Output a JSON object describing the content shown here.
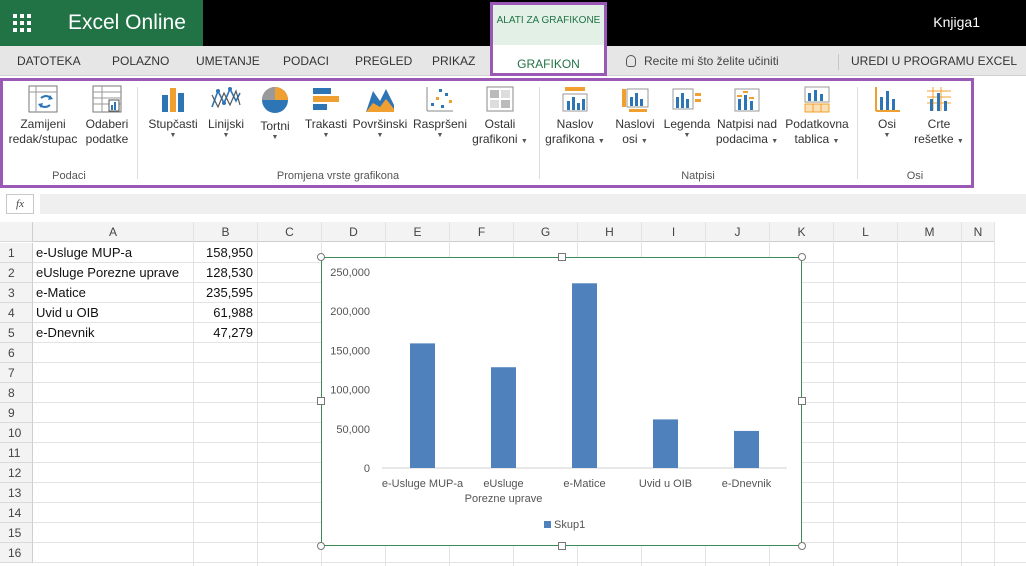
{
  "app": {
    "name": "Excel Online",
    "document": "Knjiga1"
  },
  "tabs": [
    "DATOTEKA",
    "POLAZNO",
    "UMETANJE",
    "PODACI",
    "PREGLED",
    "PRIKAZ"
  ],
  "contextual": {
    "group": "ALATI ZA GRAFIKONE",
    "tab": "GRAFIKON"
  },
  "tell_me": "Recite mi što želite učiniti",
  "edit_in_excel": "UREDI U PROGRAMU EXCEL",
  "ribbon": {
    "groups": [
      {
        "label": "Podaci",
        "buttons": [
          {
            "line1": "Zamijeni",
            "line2": "redak/stupac",
            "icon": "switch-row-column-icon"
          },
          {
            "line1": "Odaberi",
            "line2": "podatke",
            "icon": "select-data-icon"
          }
        ]
      },
      {
        "label": "Promjena vrste grafikona",
        "buttons": [
          {
            "line1": "Stupčasti",
            "line2": "",
            "icon": "column-chart-icon"
          },
          {
            "line1": "Linijski",
            "line2": "",
            "icon": "line-chart-icon"
          },
          {
            "line1": "Tortni",
            "line2": "",
            "icon": "pie-chart-icon"
          },
          {
            "line1": "Trakasti",
            "line2": "",
            "icon": "bar-chart-icon"
          },
          {
            "line1": "Površinski",
            "line2": "",
            "icon": "area-chart-icon"
          },
          {
            "line1": "Raspršeni",
            "line2": "",
            "icon": "scatter-chart-icon"
          },
          {
            "line1": "Ostali",
            "line2": "grafikoni",
            "icon": "other-charts-icon"
          }
        ]
      },
      {
        "label": "Natpisi",
        "buttons": [
          {
            "line1": "Naslov",
            "line2": "grafikona",
            "icon": "chart-title-icon"
          },
          {
            "line1": "Naslovi",
            "line2": "osi",
            "icon": "axis-titles-icon"
          },
          {
            "line1": "Legenda",
            "line2": "",
            "icon": "legend-icon"
          },
          {
            "line1": "Natpisi nad",
            "line2": "podacima",
            "icon": "data-labels-icon"
          },
          {
            "line1": "Podatkovna",
            "line2": "tablica",
            "icon": "data-table-icon"
          }
        ]
      },
      {
        "label": "Osi",
        "buttons": [
          {
            "line1": "Osi",
            "line2": "",
            "icon": "axes-icon"
          },
          {
            "line1": "Crte",
            "line2": "rešetke",
            "icon": "gridlines-icon"
          }
        ]
      }
    ]
  },
  "formula_bar": {
    "fx": "fx"
  },
  "columns": [
    "A",
    "B",
    "C",
    "D",
    "E",
    "F",
    "G",
    "H",
    "I",
    "J",
    "K",
    "L",
    "M",
    "N"
  ],
  "rows": [
    "1",
    "2",
    "3",
    "4",
    "5",
    "6",
    "7",
    "8",
    "9",
    "10",
    "11",
    "12",
    "13",
    "14",
    "15",
    "16"
  ],
  "cells": [
    {
      "label": "e-Usluge MUP-a",
      "value": "158,950"
    },
    {
      "label": "eUsluge Porezne uprave",
      "value": "128,530"
    },
    {
      "label": "e-Matice",
      "value": "235,595"
    },
    {
      "label": "Uvid u OIB",
      "value": "61,988"
    },
    {
      "label": "e-Dnevnik",
      "value": "47,279"
    }
  ],
  "colors": {
    "excel_green": "#217346",
    "highlight": "#9b59b6",
    "bar": "#4f81bd"
  },
  "chart_data": {
    "type": "bar",
    "categories": [
      "e-Usluge MUP-a",
      "eUsluge Porezne uprave",
      "e-Matice",
      "Uvid u OIB",
      "e-Dnevnik"
    ],
    "series": [
      {
        "name": "Skup1",
        "values": [
          158950,
          128530,
          235595,
          61988,
          47279
        ]
      }
    ],
    "ylim": [
      0,
      250000
    ],
    "yticks": [
      "0",
      "50,000",
      "100,000",
      "150,000",
      "200,000",
      "250,000"
    ],
    "legend": "bottom",
    "grid": false
  }
}
